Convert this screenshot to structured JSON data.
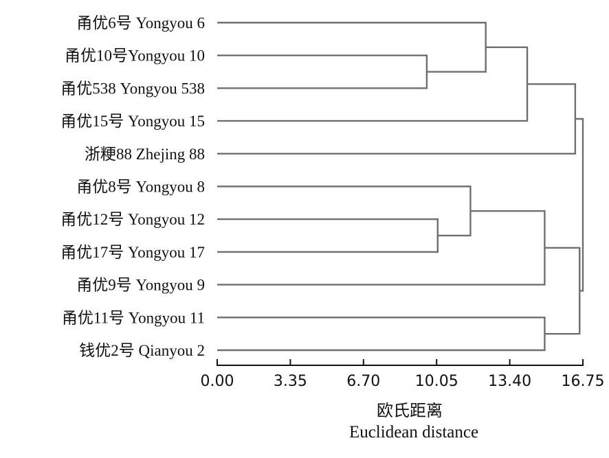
{
  "chart_data": {
    "type": "dendrogram",
    "xlabel_cn": "欧氏距离",
    "xlabel_en": "Euclidean distance",
    "xlim": [
      0,
      16.75
    ],
    "xticks": [
      "0.00",
      "3.35",
      "6.70",
      "10.05",
      "13.40",
      "16.75"
    ],
    "xtick_values": [
      0,
      3.35,
      6.7,
      10.05,
      13.4,
      16.75
    ],
    "leaves": [
      "甬优6号 Yongyou 6",
      "甬优10号Yongyou 10",
      "甬优538 Yongyou 538",
      "甬优15号 Yongyou 15",
      "浙粳88 Zhejing 88",
      "甬优8号 Yongyou 8",
      "甬优12号 Yongyou 12",
      "甬优17号 Yongyou 17",
      "甬优9号 Yongyou 9",
      "甬优11号 Yongyou 11",
      "钱优2号 Qianyou 2"
    ],
    "merges": [
      {
        "a": "L1",
        "b": "L2",
        "height": 9.6
      },
      {
        "a": "L0",
        "b": "M0",
        "height": 12.3
      },
      {
        "a": "M1",
        "b": "L3",
        "height": 14.2
      },
      {
        "a": "M2",
        "b": "L4",
        "height": 16.4
      },
      {
        "a": "L6",
        "b": "L7",
        "height": 10.1
      },
      {
        "a": "L5",
        "b": "M4",
        "height": 11.6
      },
      {
        "a": "M5",
        "b": "L8",
        "height": 15.0
      },
      {
        "a": "L9",
        "b": "L10",
        "height": 15.0
      },
      {
        "a": "M6",
        "b": "M7",
        "height": 16.6
      },
      {
        "a": "M3",
        "b": "M8",
        "height": 16.75
      }
    ]
  }
}
